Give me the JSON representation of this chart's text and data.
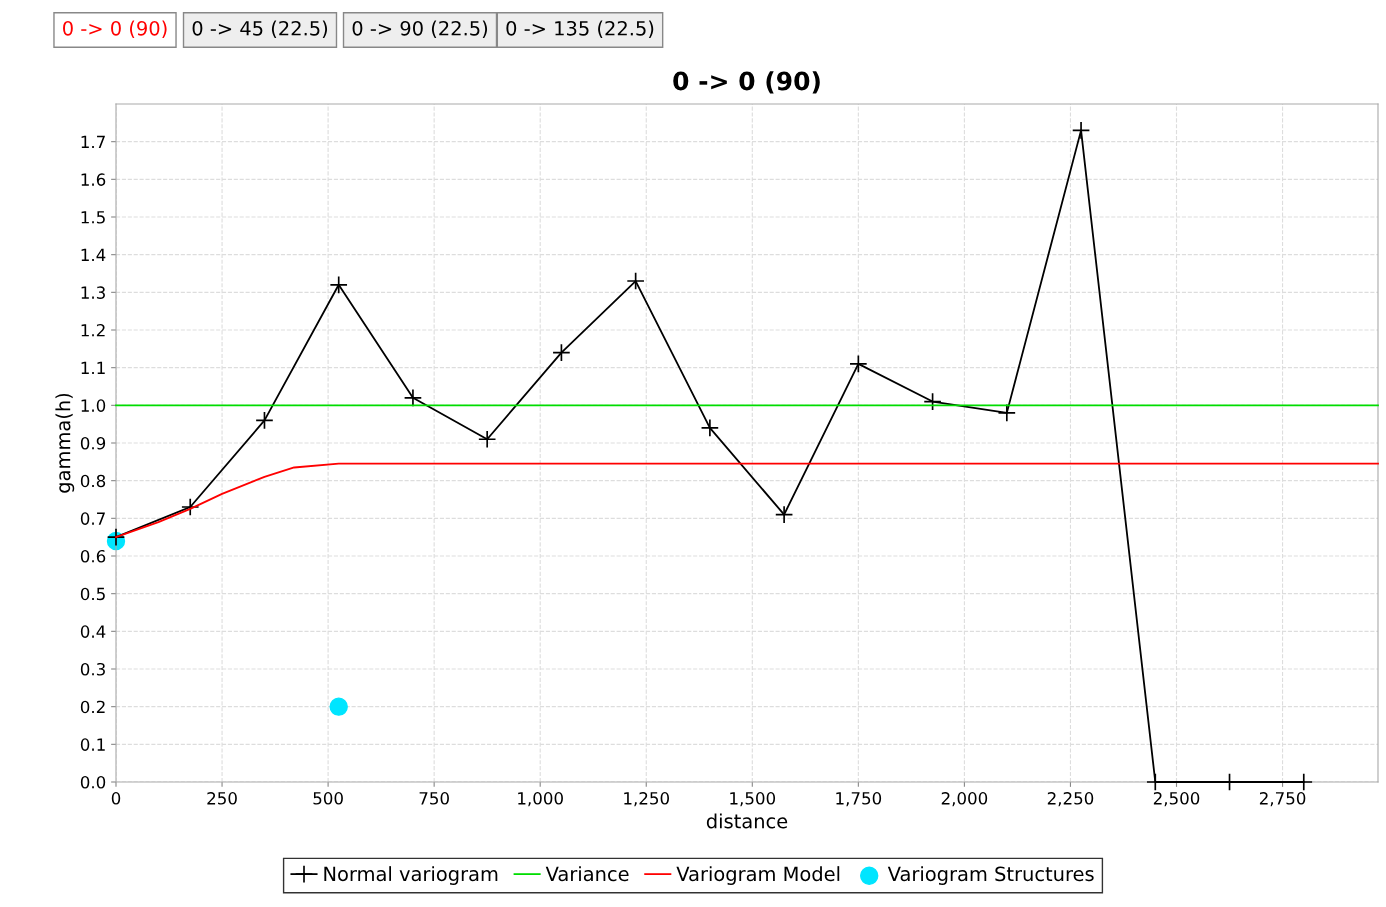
{
  "chart_data": {
    "type": "line",
    "title": "0 -> 0 (90)",
    "xlabel": "distance",
    "ylabel": "gamma(h)",
    "annotations": [
      "0 -> 0 (90)",
      "0 -> 45 (22.5)",
      "0 -> 90 (22.5)",
      "0 -> 135 (22.5)"
    ],
    "xlim": [
      0,
      2975
    ],
    "ylim": [
      0,
      1.8
    ],
    "xticks": [
      0,
      250,
      500,
      750,
      {
        "value": 1000,
        "label": "1,000"
      },
      {
        "value": 1250,
        "label": "1,250"
      },
      {
        "value": 1500,
        "label": "1,500"
      },
      {
        "value": 1750,
        "label": "1,750"
      },
      {
        "value": 2000,
        "label": "2,000"
      },
      {
        "value": 2250,
        "label": "2,250"
      },
      {
        "value": 2500,
        "label": "2,500"
      },
      {
        "value": 2750,
        "label": "2,750"
      }
    ],
    "yticks": [
      {
        "value": 0,
        "label": "0.0"
      },
      0.1,
      0.2,
      0.3,
      0.4,
      0.5,
      0.6,
      0.7,
      0.8,
      0.9,
      {
        "value": 1,
        "label": "1.0"
      },
      1.1,
      1.2,
      1.3,
      1.4,
      1.5,
      1.6,
      1.7
    ],
    "grid": true,
    "legend": "bottom",
    "series": [
      {
        "name": "Normal variogram",
        "color": "#000000",
        "marker": "cross",
        "x": [
          0,
          175,
          350,
          525,
          700,
          875,
          1050,
          1225,
          1400,
          1575,
          1750,
          1925,
          2100,
          2275,
          2450,
          2625,
          2800
        ],
        "values": [
          0.65,
          0.73,
          0.96,
          1.32,
          1.02,
          0.91,
          1.14,
          1.33,
          0.94,
          0.71,
          1.11,
          1.01,
          0.98,
          1.73,
          0,
          0,
          0
        ]
      },
      {
        "name": "Variance",
        "color": "#00dd00",
        "marker": "none",
        "x": [
          0,
          2975
        ],
        "values": [
          1.0,
          1.0
        ]
      },
      {
        "name": "Variogram Model",
        "color": "#ff0000",
        "marker": "none",
        "x": [
          0,
          100,
          175,
          250,
          350,
          420,
          525,
          2975
        ],
        "values": [
          0.65,
          0.69,
          0.725,
          0.765,
          0.81,
          0.835,
          0.845,
          0.845
        ]
      },
      {
        "name": "Variogram Structures",
        "type": "scatter",
        "color": "#00e5ff",
        "marker": "circle",
        "x": [
          0,
          525
        ],
        "values": [
          0.64,
          0.2
        ]
      }
    ]
  }
}
